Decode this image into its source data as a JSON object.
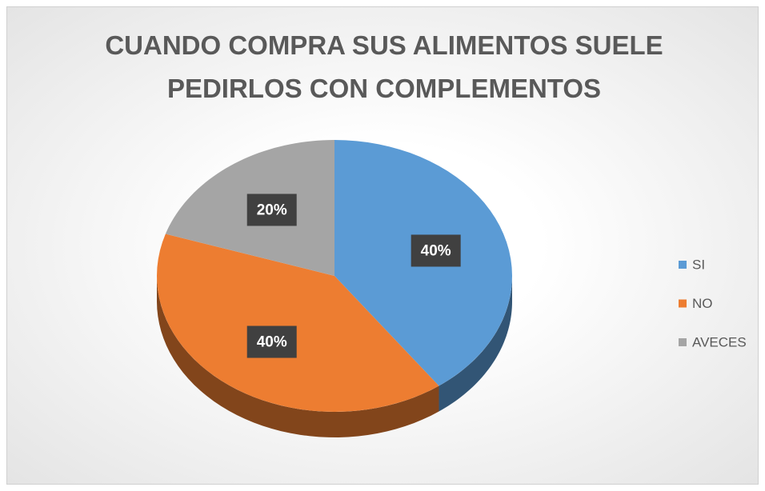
{
  "chart_data": {
    "type": "pie",
    "title": "CUANDO COMPRA SUS ALIMENTOS SUELE PEDIRLOS CON COMPLEMENTOS",
    "categories": [
      "SI",
      "NO",
      "AVECES"
    ],
    "values": [
      40,
      40,
      20
    ],
    "value_labels": [
      "40%",
      "40%",
      "20%"
    ],
    "colors": [
      "#5b9bd5",
      "#ed7d31",
      "#a5a5a5"
    ],
    "legend": "right",
    "three_d": true
  }
}
